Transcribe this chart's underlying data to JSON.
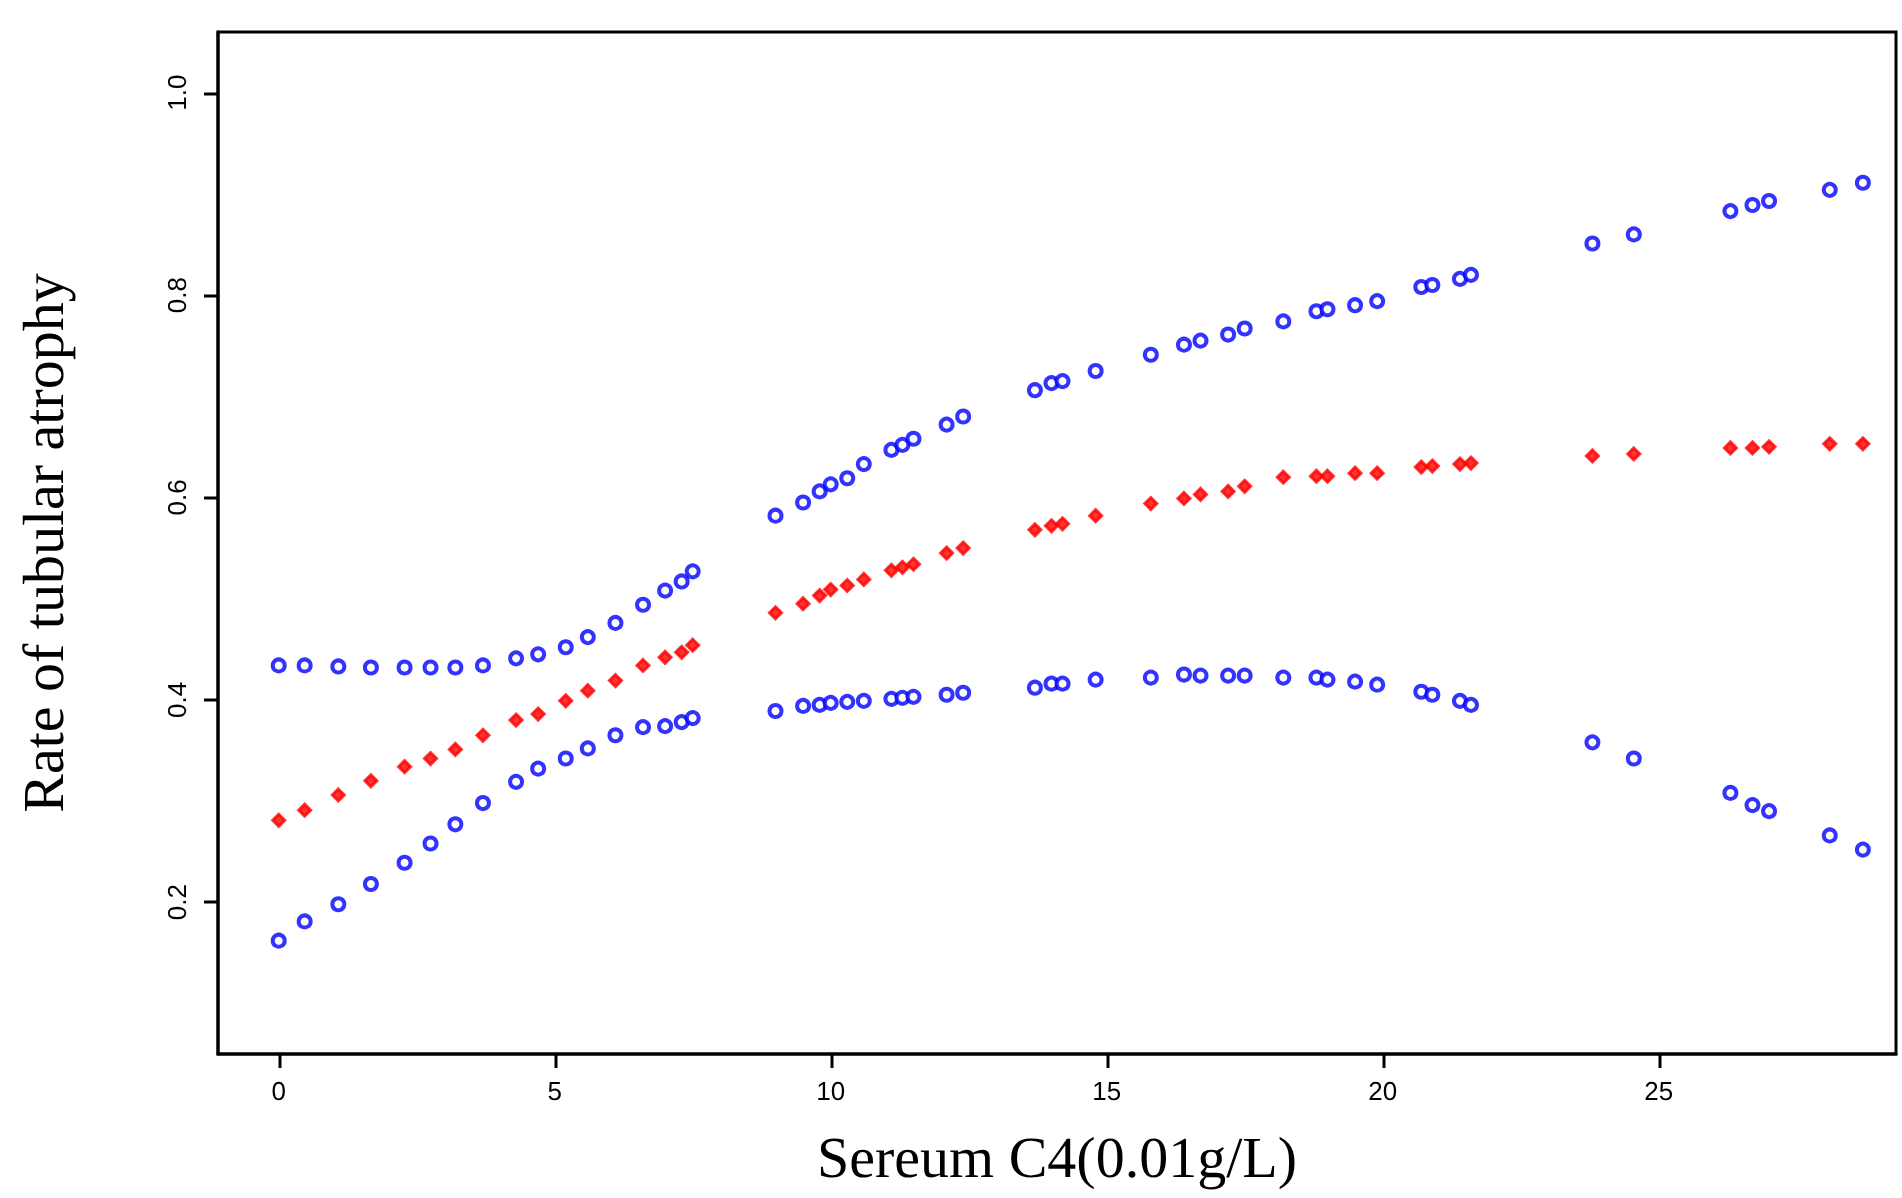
{
  "chart_data": {
    "type": "scatter",
    "xlabel": "Sereum C4(0.01g/L)",
    "ylabel": "Rate of tubular atrophy",
    "x": [
      0,
      0.47,
      1.08,
      1.67,
      2.28,
      2.75,
      3.2,
      3.7,
      4.3,
      4.7,
      5.2,
      5.6,
      6.1,
      6.6,
      7.0,
      7.3,
      7.5,
      9.0,
      9.5,
      9.8,
      10.0,
      10.3,
      10.6,
      11.1,
      11.3,
      11.5,
      12.1,
      12.4,
      13.7,
      14.0,
      14.2,
      14.8,
      15.8,
      16.4,
      16.7,
      17.2,
      17.5,
      18.2,
      18.8,
      19.0,
      19.5,
      19.9,
      20.7,
      20.9,
      21.4,
      21.6,
      23.8,
      24.55,
      26.3,
      26.7,
      27.0,
      28.1,
      28.7
    ],
    "series": [
      {
        "color": "#0000ff",
        "marker": "circle",
        "values": [
          0.434,
          0.434,
          0.433,
          0.432,
          0.432,
          0.432,
          0.432,
          0.434,
          0.441,
          0.445,
          0.452,
          0.462,
          0.476,
          0.494,
          0.508,
          0.517,
          0.527,
          0.582,
          0.595,
          0.606,
          0.613,
          0.619,
          0.633,
          0.647,
          0.652,
          0.658,
          0.672,
          0.68,
          0.706,
          0.713,
          0.715,
          0.725,
          0.741,
          0.751,
          0.755,
          0.761,
          0.767,
          0.774,
          0.784,
          0.786,
          0.79,
          0.794,
          0.808,
          0.81,
          0.816,
          0.82,
          0.851,
          0.86,
          0.883,
          0.889,
          0.893,
          0.904,
          0.911
        ]
      },
      {
        "color": "#ff0000",
        "marker": "diamond",
        "values": [
          0.281,
          0.291,
          0.306,
          0.32,
          0.334,
          0.342,
          0.351,
          0.365,
          0.38,
          0.386,
          0.399,
          0.409,
          0.419,
          0.434,
          0.442,
          0.447,
          0.454,
          0.486,
          0.495,
          0.503,
          0.509,
          0.513,
          0.519,
          0.528,
          0.531,
          0.534,
          0.545,
          0.55,
          0.568,
          0.572,
          0.574,
          0.582,
          0.594,
          0.599,
          0.603,
          0.606,
          0.611,
          0.62,
          0.621,
          0.621,
          0.624,
          0.624,
          0.63,
          0.631,
          0.633,
          0.634,
          0.641,
          0.643,
          0.649,
          0.649,
          0.65,
          0.653,
          0.653
        ]
      },
      {
        "color": "#0000ff",
        "marker": "circle",
        "values": [
          0.162,
          0.181,
          0.198,
          0.218,
          0.239,
          0.258,
          0.277,
          0.298,
          0.319,
          0.332,
          0.342,
          0.352,
          0.365,
          0.373,
          0.374,
          0.378,
          0.382,
          0.389,
          0.394,
          0.395,
          0.397,
          0.398,
          0.399,
          0.401,
          0.402,
          0.403,
          0.405,
          0.407,
          0.412,
          0.416,
          0.416,
          0.42,
          0.422,
          0.425,
          0.424,
          0.424,
          0.424,
          0.422,
          0.422,
          0.42,
          0.418,
          0.415,
          0.408,
          0.405,
          0.399,
          0.395,
          0.358,
          0.342,
          0.308,
          0.296,
          0.29,
          0.266,
          0.252
        ]
      }
    ],
    "xlim": [
      -1.1,
      29.3
    ],
    "ylim": [
      0.05,
      1.06
    ],
    "xticks": [
      0,
      5,
      10,
      15,
      20,
      25
    ],
    "yticks": [
      0.2,
      0.4,
      0.6,
      0.8,
      {
        "value": 1,
        "label": "1.0"
      }
    ],
    "grid": false
  }
}
